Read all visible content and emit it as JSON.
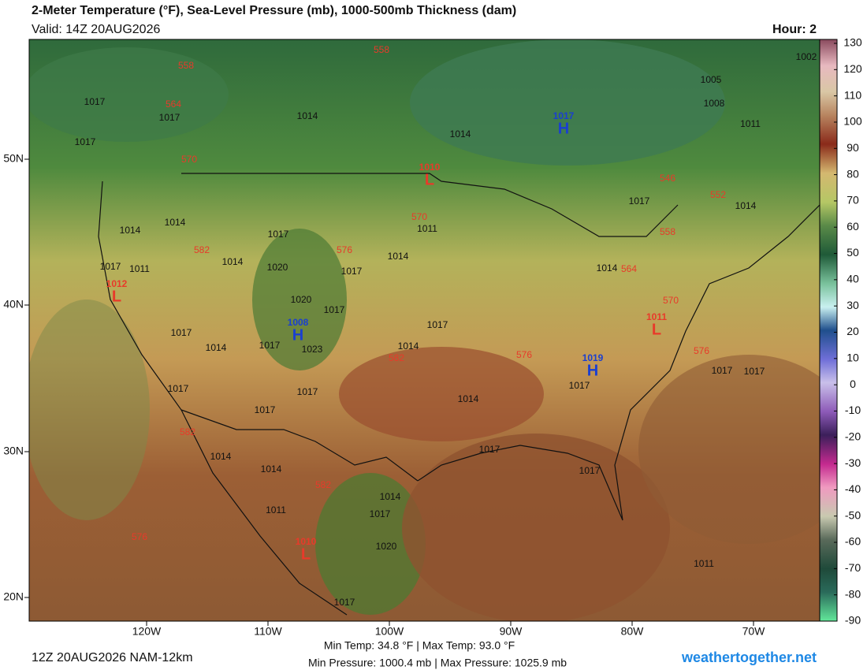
{
  "header": {
    "title": "2-Meter Temperature (°F), Sea-Level Pressure (mb), 1000-500mb Thickness (dam)",
    "valid": "Valid: 14Z 20AUG2026",
    "hour": "Hour: 2"
  },
  "colorbar": {
    "ticks": [
      130,
      120,
      110,
      100,
      90,
      80,
      70,
      60,
      50,
      40,
      30,
      20,
      10,
      0,
      -10,
      -20,
      -30,
      -40,
      -50,
      -60,
      -70,
      -80,
      -90
    ]
  },
  "map": {
    "lat_labels": [
      "50N",
      "40N",
      "30N",
      "20N"
    ],
    "lon_labels": [
      "120W",
      "110W",
      "100W",
      "90W",
      "80W",
      "70W"
    ],
    "pressure_centers": [
      {
        "symbol": "H",
        "value": "1017"
      },
      {
        "symbol": "L",
        "value": "1010"
      },
      {
        "symbol": "H",
        "value": "1008"
      },
      {
        "symbol": "L",
        "value": "1012"
      },
      {
        "symbol": "L",
        "value": "1011"
      },
      {
        "symbol": "H",
        "value": "1019"
      },
      {
        "symbol": "L",
        "value": "1010"
      }
    ],
    "isobar_labels": [
      "1017",
      "1017",
      "1017",
      "1014",
      "1014",
      "1005",
      "1008",
      "1011",
      "1002",
      "1017",
      "1014",
      "1014",
      "1014",
      "1017",
      "1011",
      "1014",
      "1011",
      "1014",
      "1017",
      "1020",
      "1017",
      "1020",
      "1017",
      "1017",
      "1014",
      "1017",
      "1023",
      "1017",
      "1014",
      "1017",
      "1014",
      "1017",
      "1017",
      "1017",
      "1017",
      "1017",
      "1014",
      "1014",
      "1011",
      "1014",
      "1017",
      "1020",
      "1017",
      "1017",
      "1011",
      "1017",
      "1014"
    ],
    "thickness_labels": [
      "558",
      "558",
      "564",
      "570",
      "570",
      "576",
      "582",
      "582",
      "576",
      "582",
      "582",
      "576",
      "546",
      "552",
      "558",
      "564",
      "570",
      "576"
    ]
  },
  "footer": {
    "run": "12Z 20AUG2026 NAM-12km",
    "temp_stats": "Min Temp:  34.8 °F | Max Temp:  93.0 °F",
    "pressure_stats": "Min Pressure: 1000.4 mb | Max Pressure: 1025.9 mb",
    "site": "weathertogether.net"
  }
}
